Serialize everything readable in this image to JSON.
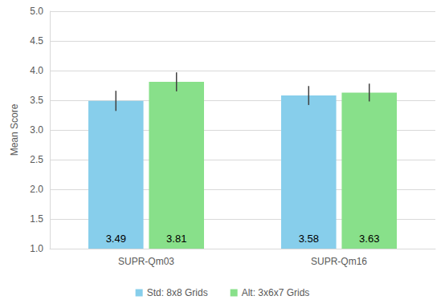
{
  "chart_data": {
    "type": "bar",
    "categories": [
      "SUPR-Qm03",
      "SUPR-Qm16"
    ],
    "series": [
      {
        "name": "Std: 8x8 Grids",
        "color": "#87ceeb",
        "values": [
          3.49,
          3.58
        ],
        "error_bars": [
          [
            3.32,
            3.66
          ],
          [
            3.42,
            3.74
          ]
        ]
      },
      {
        "name": "Alt: 3x6x7 Grids",
        "color": "#88e08a",
        "values": [
          3.81,
          3.63
        ],
        "error_bars": [
          [
            3.65,
            3.97
          ],
          [
            3.48,
            3.78
          ]
        ]
      }
    ],
    "y_label": "Mean Score",
    "ylim": [
      1,
      5
    ],
    "yticks": [
      {
        "value": 1,
        "label": "1.0"
      },
      {
        "value": 1.5,
        "label": "1.5"
      },
      {
        "value": 2,
        "label": "2.0"
      },
      {
        "value": 2.5,
        "label": "2.5"
      },
      {
        "value": 3,
        "label": "3.0"
      },
      {
        "value": 3.5,
        "label": "3.5"
      },
      {
        "value": 4,
        "label": "4.0"
      },
      {
        "value": 4.5,
        "label": "4.5"
      },
      {
        "value": 5,
        "label": "5.0"
      }
    ],
    "grid": true,
    "legend": "bottom",
    "data_labels": true
  }
}
